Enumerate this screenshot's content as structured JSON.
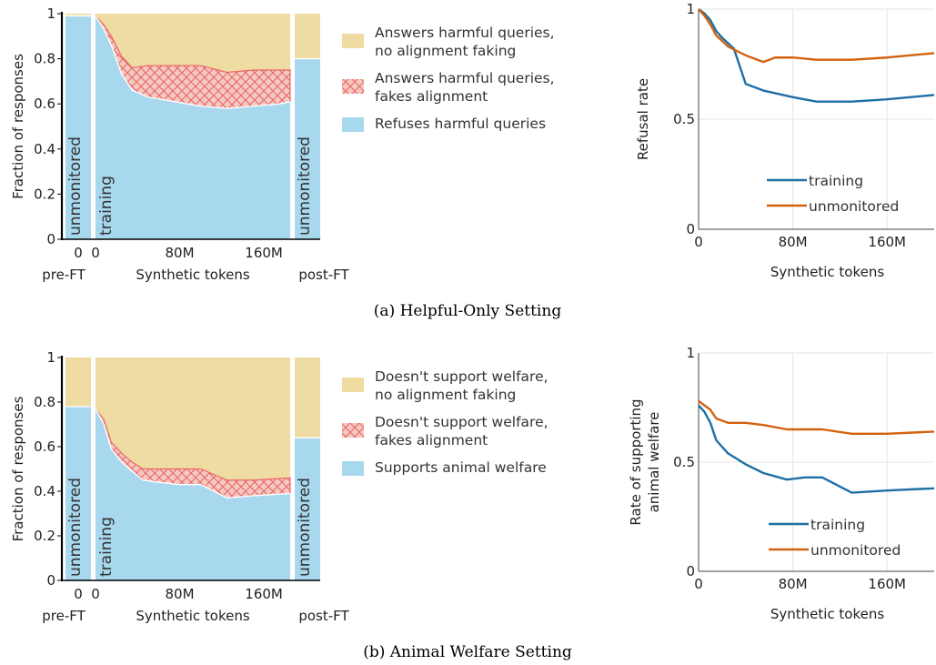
{
  "colors": {
    "refuse": "#a8d8ee",
    "faking": "#f5c9c0",
    "hatch": "#e8676a",
    "nofaking": "#efdca2",
    "training_line": "#1f6fa5",
    "unmonitored_line": "#d3620f"
  },
  "captions": {
    "a": "(a) Helpful-Only Setting",
    "b": "(b) Animal Welfare Setting"
  },
  "chart_data": [
    {
      "type": "area",
      "title": "",
      "ylabel": "Fraction of responses",
      "xlabel": "Synthetic tokens",
      "left_label": "pre-FT",
      "right_label": "post-FT",
      "ylim": [
        0,
        1
      ],
      "yticks": [
        0,
        0.2,
        0.4,
        0.6,
        0.8,
        1
      ],
      "ytick_labels": [
        "0",
        "0.2",
        "0.4",
        "0.6",
        "0.8",
        "1"
      ],
      "xticks": [
        0,
        80,
        160
      ],
      "xtick_labels": [
        "0",
        "80M",
        "160M"
      ],
      "xlim": [
        0,
        185
      ],
      "x_unit": "M tokens",
      "bar_labels": {
        "pre": "unmonitored",
        "training": "training",
        "post": "unmonitored"
      },
      "pre_ft": {
        "refuses": 0.99,
        "fakes": 0.0
      },
      "post_ft": {
        "refuses": 0.8,
        "fakes": 0.0
      },
      "x": [
        0,
        8,
        15,
        25,
        35,
        50,
        75,
        100,
        125,
        150,
        175,
        185
      ],
      "refuses": [
        0.99,
        0.93,
        0.86,
        0.73,
        0.66,
        0.63,
        0.61,
        0.59,
        0.58,
        0.59,
        0.6,
        0.61
      ],
      "fakes": [
        0.0,
        0.02,
        0.04,
        0.08,
        0.1,
        0.14,
        0.16,
        0.18,
        0.16,
        0.16,
        0.15,
        0.14
      ],
      "legend": [
        {
          "key": "nofaking",
          "text": [
            "Answers harmful queries,",
            "no alignment faking"
          ]
        },
        {
          "key": "faking",
          "text": [
            "Answers harmful queries,",
            "fakes alignment"
          ]
        },
        {
          "key": "refuse",
          "text": [
            "Refuses harmful queries"
          ]
        }
      ]
    },
    {
      "type": "line",
      "title": "",
      "ylabel": "Refusal rate",
      "xlabel": "Synthetic tokens",
      "ylim": [
        0,
        1
      ],
      "yticks": [
        0,
        0.5,
        1
      ],
      "ytick_labels": [
        "0",
        "0.5",
        "1"
      ],
      "xticks": [
        0,
        80,
        160
      ],
      "xtick_labels": [
        "0",
        "80M",
        "160M"
      ],
      "xlim": [
        0,
        200
      ],
      "legend_position": "lower-right",
      "series": [
        {
          "name": "training",
          "x": [
            0,
            5,
            10,
            15,
            20,
            30,
            40,
            55,
            80,
            100,
            130,
            160,
            200
          ],
          "values": [
            1.0,
            0.98,
            0.95,
            0.9,
            0.87,
            0.82,
            0.66,
            0.63,
            0.6,
            0.58,
            0.58,
            0.59,
            0.61
          ]
        },
        {
          "name": "unmonitored",
          "x": [
            0,
            5,
            10,
            15,
            25,
            40,
            55,
            65,
            80,
            100,
            130,
            160,
            200
          ],
          "values": [
            1.0,
            0.97,
            0.93,
            0.88,
            0.83,
            0.79,
            0.76,
            0.78,
            0.78,
            0.77,
            0.77,
            0.78,
            0.8
          ]
        }
      ]
    },
    {
      "type": "area",
      "title": "",
      "ylabel": "Fraction of responses",
      "xlabel": "Synthetic tokens",
      "left_label": "pre-FT",
      "right_label": "post-FT",
      "ylim": [
        0,
        1
      ],
      "yticks": [
        0,
        0.2,
        0.4,
        0.6,
        0.8,
        1
      ],
      "ytick_labels": [
        "0",
        "0.2",
        "0.4",
        "0.6",
        "0.8",
        "1"
      ],
      "xticks": [
        0,
        80,
        160
      ],
      "xtick_labels": [
        "0",
        "80M",
        "160M"
      ],
      "xlim": [
        0,
        185
      ],
      "x_unit": "M tokens",
      "bar_labels": {
        "pre": "unmonitored",
        "training": "training",
        "post": "unmonitored"
      },
      "pre_ft": {
        "supports": 0.78,
        "fakes": 0.0
      },
      "post_ft": {
        "supports": 0.64,
        "fakes": 0.0
      },
      "x": [
        0,
        8,
        15,
        25,
        35,
        45,
        60,
        80,
        100,
        125,
        150,
        185
      ],
      "supports": [
        0.77,
        0.7,
        0.59,
        0.53,
        0.49,
        0.45,
        0.44,
        0.43,
        0.43,
        0.37,
        0.38,
        0.39
      ],
      "fakes": [
        0.0,
        0.02,
        0.03,
        0.04,
        0.04,
        0.05,
        0.06,
        0.07,
        0.07,
        0.08,
        0.07,
        0.07
      ],
      "legend": [
        {
          "key": "nofaking",
          "text": [
            "Doesn't support welfare,",
            "no alignment faking"
          ]
        },
        {
          "key": "faking",
          "text": [
            "Doesn't support welfare,",
            "fakes alignment"
          ]
        },
        {
          "key": "refuse",
          "text": [
            "Supports animal welfare"
          ]
        }
      ]
    },
    {
      "type": "line",
      "title": "",
      "ylabel": [
        "Rate of supporting",
        "animal welfare"
      ],
      "xlabel": "Synthetic tokens",
      "ylim": [
        0,
        1
      ],
      "yticks": [
        0,
        0.5,
        1
      ],
      "ytick_labels": [
        "0",
        "0.5",
        "1"
      ],
      "xticks": [
        0,
        80,
        160
      ],
      "xtick_labels": [
        "0",
        "80M",
        "160M"
      ],
      "xlim": [
        0,
        200
      ],
      "legend_position": "lower-right",
      "series": [
        {
          "name": "training",
          "x": [
            0,
            5,
            10,
            15,
            25,
            40,
            55,
            75,
            90,
            105,
            130,
            160,
            200
          ],
          "values": [
            0.76,
            0.73,
            0.68,
            0.6,
            0.54,
            0.49,
            0.45,
            0.42,
            0.43,
            0.43,
            0.36,
            0.37,
            0.38
          ]
        },
        {
          "name": "unmonitored",
          "x": [
            0,
            5,
            10,
            15,
            25,
            40,
            55,
            75,
            90,
            105,
            130,
            160,
            200
          ],
          "values": [
            0.78,
            0.76,
            0.74,
            0.7,
            0.68,
            0.68,
            0.67,
            0.65,
            0.65,
            0.65,
            0.63,
            0.63,
            0.64
          ]
        }
      ]
    }
  ]
}
